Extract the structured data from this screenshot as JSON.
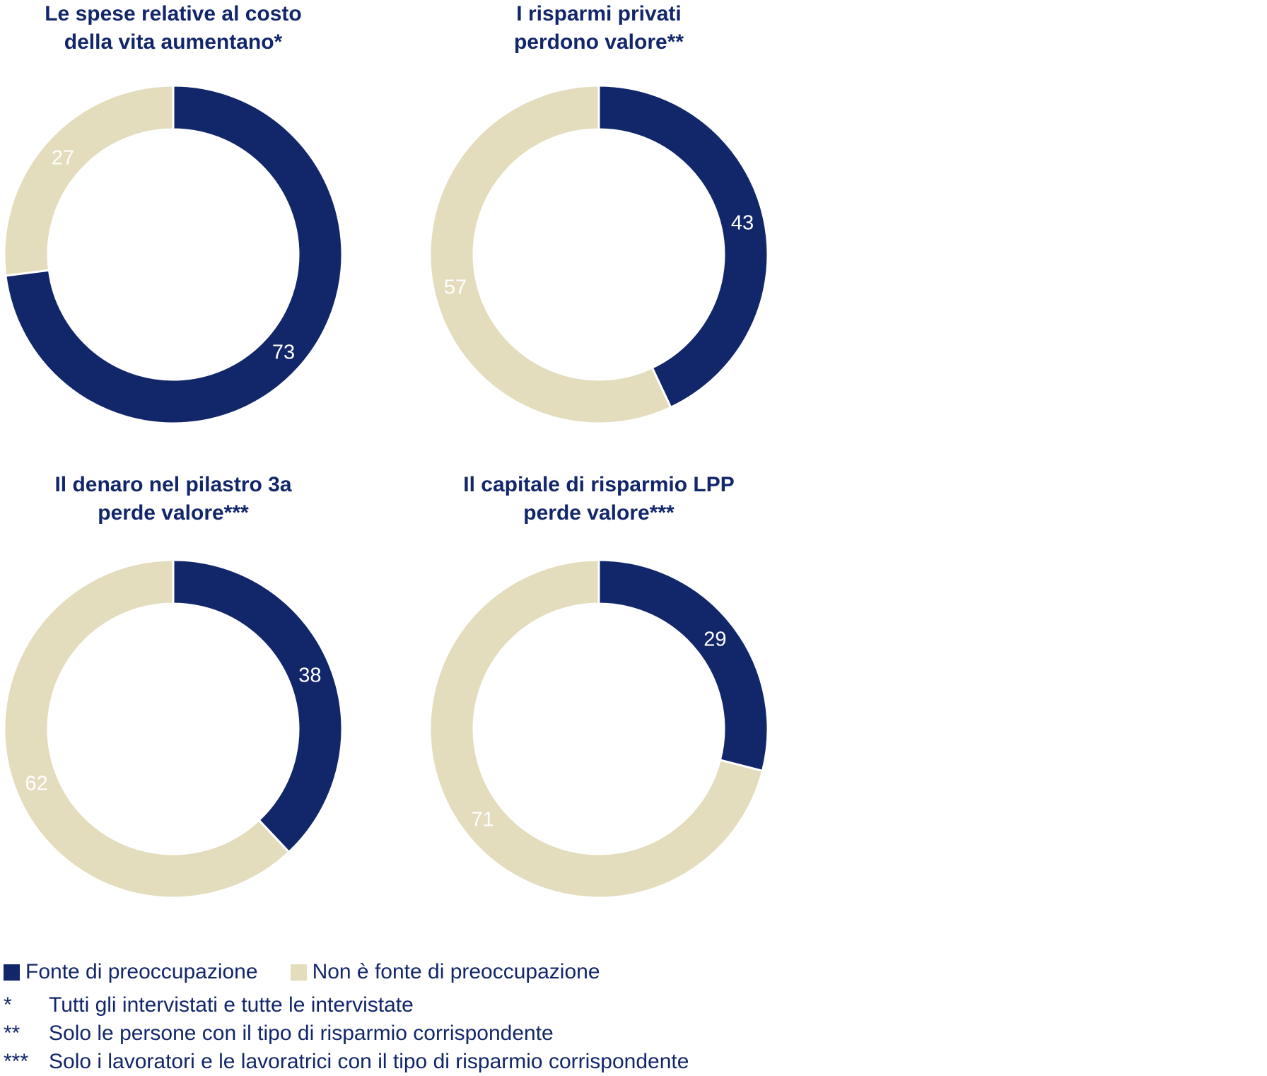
{
  "colors": {
    "concern": "#12266a",
    "no_concern": "#e3dcbd"
  },
  "chart_data": [
    {
      "type": "pie",
      "donut": true,
      "title": "Le spese relative al costo della vita aumentano*",
      "title_lines": [
        "Le spese relative al costo",
        "della vita aumentano*"
      ],
      "categories": [
        "Fonte di preoccupazione",
        "Non è fonte di preoccupazione"
      ],
      "values": [
        73,
        27
      ]
    },
    {
      "type": "pie",
      "donut": true,
      "title": "I risparmi privati perdono valore**",
      "title_lines": [
        "I risparmi privati",
        "perdono valore**"
      ],
      "categories": [
        "Fonte di preoccupazione",
        "Non è fonte di preoccupazione"
      ],
      "values": [
        43,
        57
      ]
    },
    {
      "type": "pie",
      "donut": true,
      "title": "Il denaro nel pilastro 3a perde valore***",
      "title_lines": [
        "Il denaro nel pilastro 3a",
        "perde valore***"
      ],
      "categories": [
        "Fonte di preoccupazione",
        "Non è fonte di preoccupazione"
      ],
      "values": [
        38,
        62
      ]
    },
    {
      "type": "pie",
      "donut": true,
      "title": "Il capitale di risparmio LPP perde valore***",
      "title_lines": [
        "Il capitale di risparmio LPP",
        "perde valore***"
      ],
      "categories": [
        "Fonte di preoccupazione",
        "Non è fonte di preoccupazione"
      ],
      "values": [
        29,
        71
      ]
    }
  ],
  "legend": {
    "items": [
      "Fonte di preoccupazione",
      "Non è fonte di preoccupazione"
    ],
    "placement": "bottom-left"
  },
  "footnotes": [
    {
      "mark": "*",
      "text": "Tutti gli intervistati e tutte le intervistate"
    },
    {
      "mark": "**",
      "text": "Solo le persone con il tipo di risparmio corrispondente"
    },
    {
      "mark": "***",
      "text": "Solo i lavoratori e le lavoratrici con il tipo di risparmio corrispondente"
    }
  ]
}
